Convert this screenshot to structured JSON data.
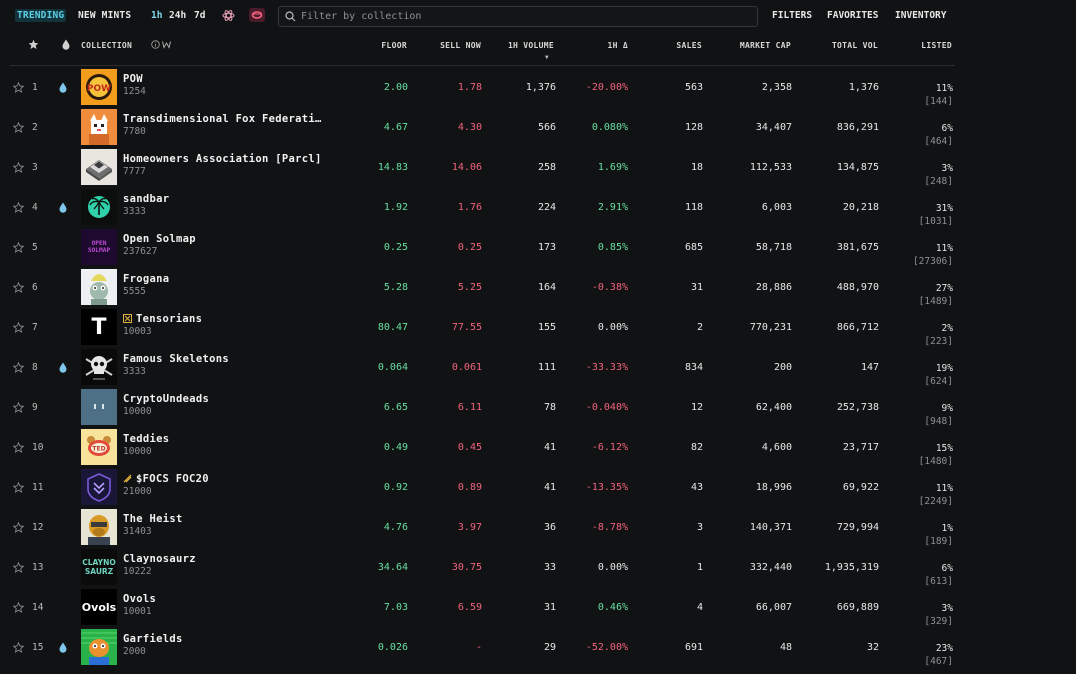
{
  "nav": {
    "tabs": [
      "TRENDING",
      "NEW MINTS"
    ],
    "timeframes": [
      "1h",
      "24h",
      "7d"
    ],
    "search_placeholder": "Filter by collection",
    "right_buttons": [
      "FILTERS",
      "FAVORITES",
      "INVENTORY"
    ]
  },
  "table": {
    "headers": {
      "collection": "COLLECTION",
      "floor": "FLOOR",
      "sell_now": "SELL NOW",
      "volume": "1H VOLUME",
      "change": "1H Δ",
      "sales": "SALES",
      "market_cap": "MARKET CAP",
      "total_vol": "TOTAL VOL",
      "listed": "LISTED"
    },
    "rows": [
      {
        "rank": "1",
        "name": "POW",
        "supply": "1254",
        "floor": "2.00",
        "sell": "1.78",
        "vol": "1,376",
        "chg": "-20.00%",
        "trend": "neg",
        "sales": "563",
        "mcap": "2,358",
        "tvol": "1,376",
        "lp": "11%",
        "lc": "[144]",
        "drop": true,
        "thumb": "pow"
      },
      {
        "rank": "2",
        "name": "Transdimensional Fox Federati…",
        "supply": "7780",
        "floor": "4.67",
        "sell": "4.30",
        "vol": "566",
        "chg": "0.080%",
        "trend": "pos",
        "sales": "128",
        "mcap": "34,407",
        "tvol": "836,291",
        "lp": "6%",
        "lc": "[464]",
        "drop": false,
        "thumb": "fox"
      },
      {
        "rank": "3",
        "name": "Homeowners Association [Parcl]",
        "supply": "7777",
        "floor": "14.83",
        "sell": "14.06",
        "vol": "258",
        "chg": "1.69%",
        "trend": "pos",
        "sales": "18",
        "mcap": "112,533",
        "tvol": "134,875",
        "lp": "3%",
        "lc": "[248]",
        "drop": false,
        "thumb": "house"
      },
      {
        "rank": "4",
        "name": "sandbar",
        "supply": "3333",
        "floor": "1.92",
        "sell": "1.76",
        "vol": "224",
        "chg": "2.91%",
        "trend": "pos",
        "sales": "118",
        "mcap": "6,003",
        "tvol": "20,218",
        "lp": "31%",
        "lc": "[1031]",
        "drop": true,
        "thumb": "palm"
      },
      {
        "rank": "5",
        "name": "Open Solmap",
        "supply": "237627",
        "floor": "0.25",
        "sell": "0.25",
        "vol": "173",
        "chg": "0.85%",
        "trend": "pos",
        "sales": "685",
        "mcap": "58,718",
        "tvol": "381,675",
        "lp": "11%",
        "lc": "[27306]",
        "drop": false,
        "thumb": "solmap",
        "thumb_text": "OPEN SOLMAP"
      },
      {
        "rank": "6",
        "name": "Frogana",
        "supply": "5555",
        "floor": "5.28",
        "sell": "5.25",
        "vol": "164",
        "chg": "-0.38%",
        "trend": "neg",
        "sales": "31",
        "mcap": "28,886",
        "tvol": "488,970",
        "lp": "27%",
        "lc": "[1489]",
        "drop": false,
        "thumb": "frog"
      },
      {
        "rank": "7",
        "name": "Tensorians",
        "supply": "10003",
        "floor": "80.47",
        "sell": "77.55",
        "vol": "155",
        "chg": "0.00%",
        "trend": "neu",
        "sales": "2",
        "mcap": "770,231",
        "tvol": "866,712",
        "lp": "2%",
        "lc": "[223]",
        "drop": false,
        "thumb": "tensor",
        "thumb_text": "T",
        "badge": true
      },
      {
        "rank": "8",
        "name": "Famous Skeletons",
        "supply": "3333",
        "floor": "0.064",
        "sell": "0.061",
        "vol": "111",
        "chg": "-33.33%",
        "trend": "neg",
        "sales": "834",
        "mcap": "200",
        "tvol": "147",
        "lp": "19%",
        "lc": "[624]",
        "drop": true,
        "thumb": "skull"
      },
      {
        "rank": "9",
        "name": "CryptoUndeads",
        "supply": "10000",
        "floor": "6.65",
        "sell": "6.11",
        "vol": "78",
        "chg": "-0.040%",
        "trend": "neg",
        "sales": "12",
        "mcap": "62,400",
        "tvol": "252,738",
        "lp": "9%",
        "lc": "[948]",
        "drop": false,
        "thumb": "undead"
      },
      {
        "rank": "10",
        "name": "Teddies",
        "supply": "10000",
        "floor": "0.49",
        "sell": "0.45",
        "vol": "41",
        "chg": "-6.12%",
        "trend": "neg",
        "sales": "82",
        "mcap": "4,600",
        "tvol": "23,717",
        "lp": "15%",
        "lc": "[1480]",
        "drop": false,
        "thumb": "teddy"
      },
      {
        "rank": "11",
        "name": "$FOCS FOC20",
        "supply": "21000",
        "floor": "0.92",
        "sell": "0.89",
        "vol": "41",
        "chg": "-13.35%",
        "trend": "neg",
        "sales": "43",
        "mcap": "18,996",
        "tvol": "69,922",
        "lp": "11%",
        "lc": "[2249]",
        "drop": false,
        "thumb": "focs",
        "badge2": true
      },
      {
        "rank": "12",
        "name": "The Heist",
        "supply": "31403",
        "floor": "4.76",
        "sell": "3.97",
        "vol": "36",
        "chg": "-8.78%",
        "trend": "neg",
        "sales": "3",
        "mcap": "140,371",
        "tvol": "729,994",
        "lp": "1%",
        "lc": "[189]",
        "drop": false,
        "thumb": "heist"
      },
      {
        "rank": "13",
        "name": "Claynosaurz",
        "supply": "10222",
        "floor": "34.64",
        "sell": "30.75",
        "vol": "33",
        "chg": "0.00%",
        "trend": "neu",
        "sales": "1",
        "mcap": "332,440",
        "tvol": "1,935,319",
        "lp": "6%",
        "lc": "[613]",
        "drop": false,
        "thumb": "clay"
      },
      {
        "rank": "14",
        "name": "Ovols",
        "supply": "10001",
        "floor": "7.03",
        "sell": "6.59",
        "vol": "31",
        "chg": "0.46%",
        "trend": "pos",
        "sales": "4",
        "mcap": "66,007",
        "tvol": "669,889",
        "lp": "3%",
        "lc": "[329]",
        "drop": false,
        "thumb": "ovols",
        "thumb_text": "Ovols"
      },
      {
        "rank": "15",
        "name": "Garfields",
        "supply": "2000",
        "floor": "0.026",
        "sell": "-",
        "vol": "29",
        "chg": "-52.00%",
        "trend": "neg",
        "sales": "691",
        "mcap": "48",
        "tvol": "32",
        "lp": "23%",
        "lc": "[467]",
        "drop": true,
        "thumb": "garf"
      }
    ]
  },
  "colors": {
    "accent": "#5ccfe6",
    "positive": "#67e0a3",
    "negative": "#f2647e",
    "muted": "#8d9095",
    "background": "#111213"
  }
}
